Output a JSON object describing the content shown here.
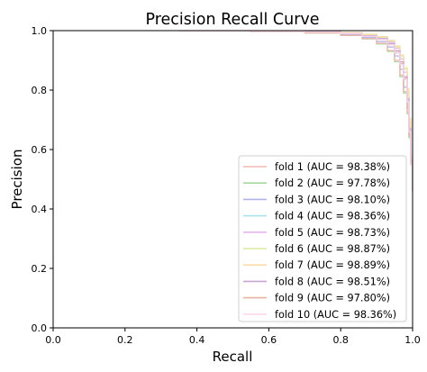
{
  "chart_data": {
    "type": "line",
    "title": "Precision Recall Curve",
    "xlabel": "Recall",
    "ylabel": "Precision",
    "xlim": [
      0.0,
      1.0
    ],
    "ylim": [
      0.0,
      1.0
    ],
    "xticks": [
      "0.0",
      "0.2",
      "0.4",
      "0.6",
      "0.8",
      "1.0"
    ],
    "yticks": [
      "0.0",
      "0.2",
      "0.4",
      "0.6",
      "0.8",
      "1.0"
    ],
    "grid": false,
    "legend_position": "lower-right",
    "series": [
      {
        "name": "fold 1 (AUC = 98.38%)",
        "color": "#f4b7b1",
        "x": [
          0.35,
          0.55,
          0.7,
          0.8,
          0.86,
          0.9,
          0.93,
          0.95,
          0.965,
          0.975,
          0.985,
          0.99,
          0.995,
          1.0
        ],
        "y": [
          0.999,
          0.998,
          0.995,
          0.99,
          0.982,
          0.972,
          0.955,
          0.93,
          0.89,
          0.84,
          0.76,
          0.66,
          0.55,
          0.46
        ]
      },
      {
        "name": "fold 2 (AUC = 97.78%)",
        "color": "#a6d9a0",
        "x": [
          0.35,
          0.55,
          0.7,
          0.8,
          0.86,
          0.9,
          0.93,
          0.95,
          0.965,
          0.975,
          0.985,
          0.99,
          0.995,
          1.0
        ],
        "y": [
          0.999,
          0.997,
          0.992,
          0.984,
          0.972,
          0.955,
          0.93,
          0.895,
          0.845,
          0.79,
          0.72,
          0.64,
          0.55,
          0.46
        ]
      },
      {
        "name": "fold 3 (AUC = 98.10%)",
        "color": "#b2b1ea",
        "x": [
          0.35,
          0.55,
          0.7,
          0.8,
          0.86,
          0.9,
          0.93,
          0.95,
          0.965,
          0.975,
          0.985,
          0.99,
          0.995,
          1.0
        ],
        "y": [
          0.999,
          0.998,
          0.994,
          0.987,
          0.977,
          0.963,
          0.945,
          0.915,
          0.87,
          0.81,
          0.74,
          0.65,
          0.55,
          0.46
        ]
      },
      {
        "name": "fold 4 (AUC = 98.36%)",
        "color": "#a9e2ea",
        "x": [
          0.35,
          0.55,
          0.7,
          0.8,
          0.86,
          0.9,
          0.93,
          0.95,
          0.965,
          0.975,
          0.985,
          0.99,
          0.995,
          1.0
        ],
        "y": [
          0.999,
          0.998,
          0.995,
          0.99,
          0.981,
          0.97,
          0.952,
          0.925,
          0.885,
          0.835,
          0.76,
          0.66,
          0.55,
          0.46
        ]
      },
      {
        "name": "fold 5 (AUC = 98.73%)",
        "color": "#e5b8ec",
        "x": [
          0.35,
          0.55,
          0.7,
          0.8,
          0.86,
          0.9,
          0.93,
          0.95,
          0.965,
          0.975,
          0.985,
          0.99,
          0.995,
          1.0
        ],
        "y": [
          0.999,
          0.999,
          0.996,
          0.992,
          0.985,
          0.976,
          0.962,
          0.94,
          0.905,
          0.86,
          0.79,
          0.69,
          0.57,
          0.46
        ]
      },
      {
        "name": "fold 6 (AUC = 98.87%)",
        "color": "#d8eba0",
        "x": [
          0.35,
          0.55,
          0.7,
          0.8,
          0.86,
          0.9,
          0.93,
          0.95,
          0.965,
          0.975,
          0.985,
          0.99,
          0.995,
          1.0
        ],
        "y": [
          0.999,
          0.999,
          0.997,
          0.993,
          0.987,
          0.978,
          0.965,
          0.945,
          0.915,
          0.87,
          0.8,
          0.7,
          0.58,
          0.46
        ]
      },
      {
        "name": "fold 7 (AUC = 98.89%)",
        "color": "#f9dcaa",
        "x": [
          0.35,
          0.55,
          0.7,
          0.8,
          0.86,
          0.9,
          0.93,
          0.95,
          0.965,
          0.975,
          0.985,
          0.99,
          0.995,
          1.0
        ],
        "y": [
          0.999,
          0.999,
          0.997,
          0.994,
          0.988,
          0.98,
          0.967,
          0.948,
          0.918,
          0.875,
          0.805,
          0.705,
          0.58,
          0.46
        ]
      },
      {
        "name": "fold 8 (AUC = 98.51%)",
        "color": "#c9a3d3",
        "x": [
          0.35,
          0.55,
          0.7,
          0.8,
          0.86,
          0.9,
          0.93,
          0.95,
          0.965,
          0.975,
          0.985,
          0.99,
          0.995,
          1.0
        ],
        "y": [
          0.999,
          0.998,
          0.996,
          0.991,
          0.983,
          0.973,
          0.957,
          0.932,
          0.895,
          0.845,
          0.77,
          0.67,
          0.56,
          0.46
        ]
      },
      {
        "name": "fold 9 (AUC = 97.80%)",
        "color": "#e8b3a3",
        "x": [
          0.35,
          0.55,
          0.7,
          0.8,
          0.86,
          0.9,
          0.93,
          0.95,
          0.965,
          0.975,
          0.985,
          0.99,
          0.995,
          1.0
        ],
        "y": [
          0.999,
          0.997,
          0.992,
          0.984,
          0.973,
          0.957,
          0.933,
          0.9,
          0.85,
          0.795,
          0.725,
          0.645,
          0.55,
          0.46
        ]
      },
      {
        "name": "fold 10 (AUC = 98.36%)",
        "color": "#fbd7ea",
        "x": [
          0.35,
          0.55,
          0.7,
          0.8,
          0.86,
          0.9,
          0.93,
          0.95,
          0.965,
          0.975,
          0.985,
          0.99,
          0.995,
          1.0
        ],
        "y": [
          0.999,
          0.998,
          0.995,
          0.99,
          0.981,
          0.97,
          0.952,
          0.926,
          0.886,
          0.836,
          0.76,
          0.66,
          0.55,
          0.46
        ]
      }
    ]
  }
}
